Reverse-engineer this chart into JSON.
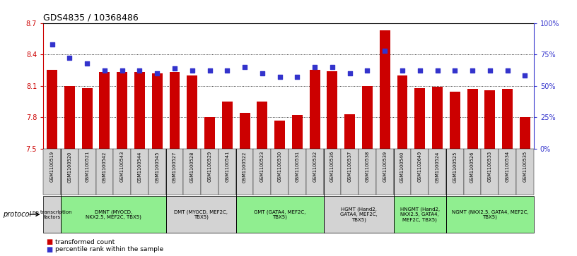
{
  "title": "GDS4835 / 10368486",
  "samples": [
    "GSM1100519",
    "GSM1100520",
    "GSM1100521",
    "GSM1100542",
    "GSM1100543",
    "GSM1100544",
    "GSM1100545",
    "GSM1100527",
    "GSM1100528",
    "GSM1100529",
    "GSM1100541",
    "GSM1100522",
    "GSM1100523",
    "GSM1100530",
    "GSM1100531",
    "GSM1100532",
    "GSM1100536",
    "GSM1100537",
    "GSM1100538",
    "GSM1100539",
    "GSM1100540",
    "GSM1102649",
    "GSM1100524",
    "GSM1100525",
    "GSM1100526",
    "GSM1100533",
    "GSM1100534",
    "GSM1100535"
  ],
  "bar_values": [
    8.25,
    8.1,
    8.08,
    8.23,
    8.23,
    8.23,
    8.22,
    8.23,
    8.2,
    7.8,
    7.95,
    7.84,
    7.95,
    7.77,
    7.82,
    8.25,
    8.24,
    7.83,
    8.1,
    8.63,
    8.2,
    8.08,
    8.09,
    8.04,
    8.07,
    8.06,
    8.07,
    7.8
  ],
  "dot_values": [
    83,
    72,
    68,
    62,
    62,
    62,
    60,
    64,
    62,
    62,
    62,
    65,
    60,
    57,
    57,
    65,
    65,
    60,
    62,
    78,
    62,
    62,
    62,
    62,
    62,
    62,
    62,
    58
  ],
  "groups": [
    {
      "label": "no transcription\nfactors",
      "start": 0,
      "end": 0,
      "color": "#d3d3d3"
    },
    {
      "label": "DMNT (MYOCD,\nNKX2.5, MEF2C, TBX5)",
      "start": 1,
      "end": 6,
      "color": "#90EE90"
    },
    {
      "label": "DMT (MYOCD, MEF2C,\nTBX5)",
      "start": 7,
      "end": 10,
      "color": "#d3d3d3"
    },
    {
      "label": "GMT (GATA4, MEF2C,\nTBX5)",
      "start": 11,
      "end": 15,
      "color": "#90EE90"
    },
    {
      "label": "HGMT (Hand2,\nGATA4, MEF2C,\nTBX5)",
      "start": 16,
      "end": 19,
      "color": "#d3d3d3"
    },
    {
      "label": "HNGMT (Hand2,\nNKX2.5, GATA4,\nMEF2C, TBX5)",
      "start": 20,
      "end": 22,
      "color": "#90EE90"
    },
    {
      "label": "NGMT (NKX2.5, GATA4, MEF2C,\nTBX5)",
      "start": 23,
      "end": 27,
      "color": "#90EE90"
    }
  ],
  "ylim_left": [
    7.5,
    8.7
  ],
  "ylim_right": [
    0,
    100
  ],
  "yticks_left": [
    7.5,
    7.8,
    8.1,
    8.4,
    8.7
  ],
  "yticks_right": [
    0,
    25,
    50,
    75,
    100
  ],
  "bar_color": "#cc0000",
  "dot_color": "#3333cc",
  "grid_color": "#000000",
  "bg_color": "#ffffff"
}
